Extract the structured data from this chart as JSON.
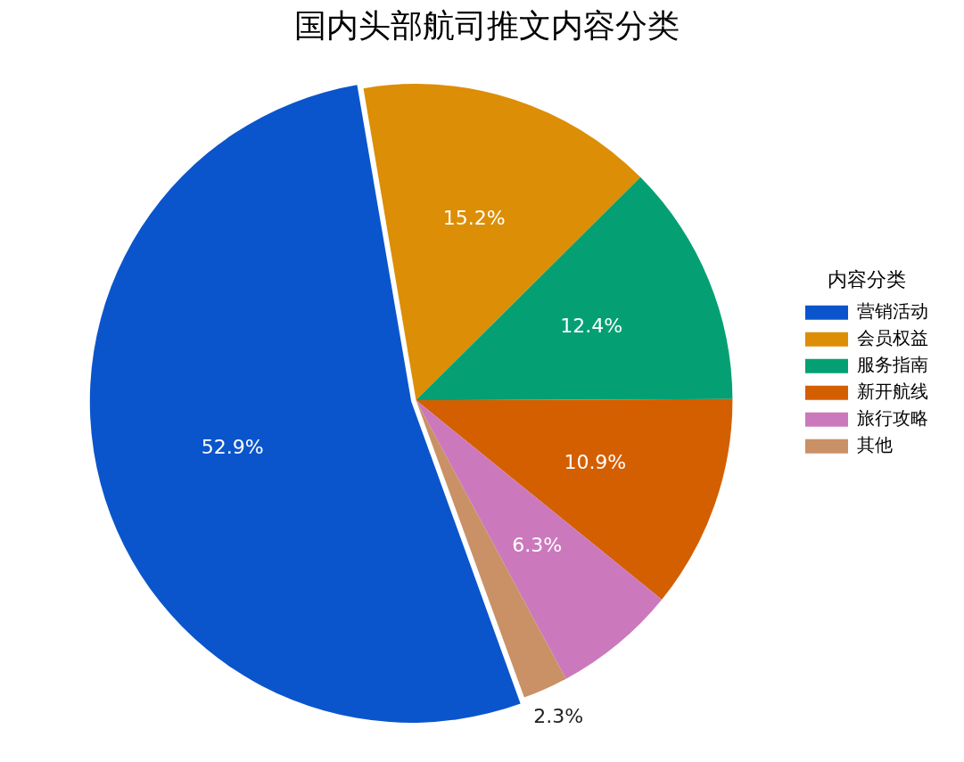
{
  "chart_data": {
    "type": "pie",
    "title": "国内头部航司推文内容分类",
    "legend_title": "内容分类",
    "categories": [
      "营销活动",
      "会员权益",
      "服务指南",
      "新开航线",
      "旅行攻略",
      "其他"
    ],
    "values": [
      52.9,
      15.2,
      12.4,
      10.9,
      6.3,
      2.3
    ],
    "colors": [
      "#0b55cc",
      "#dc8e06",
      "#04a073",
      "#d45f00",
      "#cb79bc",
      "#c99165"
    ],
    "value_labels": [
      "52.9%",
      "15.2%",
      "12.4%",
      "10.9%",
      "6.3%",
      "2.3%"
    ],
    "legend": "right"
  }
}
